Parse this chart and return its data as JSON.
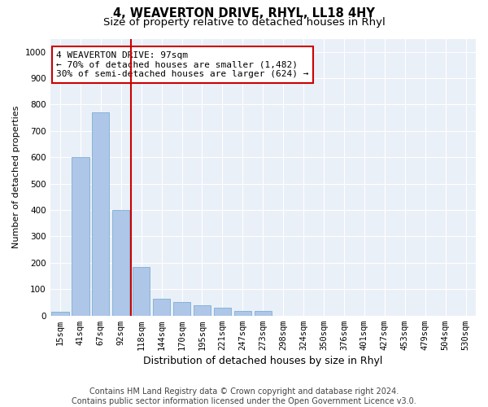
{
  "title1": "4, WEAVERTON DRIVE, RHYL, LL18 4HY",
  "title2": "Size of property relative to detached houses in Rhyl",
  "xlabel": "Distribution of detached houses by size in Rhyl",
  "ylabel": "Number of detached properties",
  "categories": [
    "15sqm",
    "41sqm",
    "67sqm",
    "92sqm",
    "118sqm",
    "144sqm",
    "170sqm",
    "195sqm",
    "221sqm",
    "247sqm",
    "273sqm",
    "298sqm",
    "324sqm",
    "350sqm",
    "376sqm",
    "401sqm",
    "427sqm",
    "453sqm",
    "479sqm",
    "504sqm",
    "530sqm"
  ],
  "values": [
    15,
    600,
    770,
    400,
    185,
    65,
    50,
    40,
    30,
    18,
    18,
    0,
    0,
    0,
    0,
    0,
    0,
    0,
    0,
    0,
    0
  ],
  "bar_color": "#aec6e8",
  "bar_edge_color": "#7aafd4",
  "vline_pos": 3.5,
  "vline_color": "#cc0000",
  "annotation_text": "4 WEAVERTON DRIVE: 97sqm\n← 70% of detached houses are smaller (1,482)\n30% of semi-detached houses are larger (624) →",
  "annotation_box_facecolor": "#ffffff",
  "annotation_box_edgecolor": "#cc0000",
  "ylim": [
    0,
    1050
  ],
  "yticks": [
    0,
    100,
    200,
    300,
    400,
    500,
    600,
    700,
    800,
    900,
    1000
  ],
  "bg_color": "#eaf0f8",
  "footer_text": "Contains HM Land Registry data © Crown copyright and database right 2024.\nContains public sector information licensed under the Open Government Licence v3.0.",
  "title1_fontsize": 10.5,
  "title2_fontsize": 9.5,
  "ylabel_fontsize": 8,
  "xlabel_fontsize": 9,
  "tick_fontsize": 7.5,
  "annotation_fontsize": 8,
  "footer_fontsize": 7
}
